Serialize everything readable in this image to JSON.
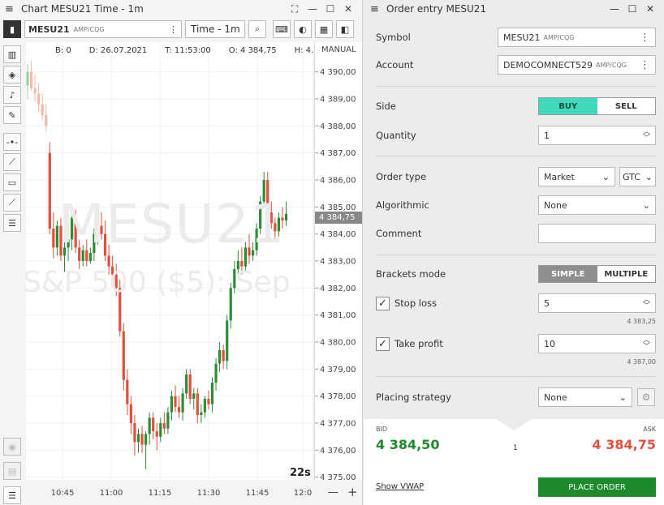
{
  "chart_window": {
    "title": "Chart MESU21 Time - 1m",
    "symbol": "MESU21",
    "symbol_source": "AMP/CQG",
    "timeframe": "Time - 1m",
    "info": {
      "b": "B: 0",
      "d": "D: 26.07.2021",
      "t": "T: 11:53:00",
      "o": "O: 4 384,75",
      "h": "H: 4..."
    },
    "scale_mode": "MANUAL",
    "watermark_symbol": "MESU21",
    "watermark_desc": "S&P 500 ($5): Sep",
    "current_price": "4 384,75",
    "bar_timer": "22s",
    "zoom_out": "—",
    "zoom_in": "+"
  },
  "chart_data": {
    "type": "candlestick",
    "y_ticks": [
      "4 390,00",
      "4 389,00",
      "4 388,00",
      "4 387,00",
      "4 386,00",
      "4 385,00",
      "4 384,00",
      "4 383,00",
      "4 382,00",
      "4 381,00",
      "4 380,00",
      "4 379,00",
      "4 378,00",
      "4 377,00",
      "4 376,00",
      "4 375,00"
    ],
    "y_tick_values": [
      4390,
      4389,
      4388,
      4387,
      4386,
      4385,
      4384,
      4383,
      4382,
      4381,
      4380,
      4379,
      4378,
      4377,
      4376,
      4375
    ],
    "x_ticks": [
      "10:45",
      "11:00",
      "11:15",
      "11:30",
      "11:45",
      "12:0"
    ],
    "ylim": [
      4374.9,
      4391.1
    ],
    "candles": [
      [
        4389.5,
        4390.3,
        4389.0,
        4390.0
      ],
      [
        4390.0,
        4390.4,
        4389.3,
        4389.4
      ],
      [
        4389.4,
        4389.9,
        4388.9,
        4389.2
      ],
      [
        4389.2,
        4389.6,
        4388.5,
        4388.8
      ],
      [
        4388.8,
        4389.2,
        4388.2,
        4388.4
      ],
      [
        4388.4,
        4388.8,
        4387.8,
        4388.0
      ],
      [
        4387.0,
        4387.4,
        4384.0,
        4384.2
      ],
      [
        4384.2,
        4384.8,
        4383.1,
        4383.5
      ],
      [
        4383.5,
        4384.5,
        4383.2,
        4384.3
      ],
      [
        4384.3,
        4384.6,
        4383.0,
        4383.2
      ],
      [
        4383.2,
        4383.8,
        4382.6,
        4383.5
      ],
      [
        4383.5,
        4384.2,
        4383.0,
        4383.8
      ],
      [
        4383.8,
        4384.9,
        4383.4,
        4384.6
      ],
      [
        4384.6,
        4384.9,
        4383.3,
        4383.5
      ],
      [
        4383.5,
        4383.8,
        4382.7,
        4383.0
      ],
      [
        4383.0,
        4383.6,
        4382.8,
        4383.4
      ],
      [
        4383.4,
        4383.8,
        4382.8,
        4383.0
      ],
      [
        4383.0,
        4383.5,
        4382.9,
        4383.3
      ],
      [
        4383.3,
        4384.2,
        4383.0,
        4384.0
      ],
      [
        4384.0,
        4384.7,
        4383.6,
        4384.3
      ],
      [
        4384.3,
        4384.8,
        4383.8,
        4384.0
      ],
      [
        4384.0,
        4384.5,
        4383.0,
        4383.2
      ],
      [
        4383.2,
        4383.6,
        4382.5,
        4382.8
      ],
      [
        4382.8,
        4383.2,
        4382.3,
        4382.5
      ],
      [
        4382.5,
        4382.9,
        4381.7,
        4382.0
      ],
      [
        4382.0,
        4382.3,
        4380.2,
        4380.4
      ],
      [
        4380.4,
        4380.7,
        4378.2,
        4378.6
      ],
      [
        4378.6,
        4379.0,
        4377.3,
        4377.7
      ],
      [
        4377.7,
        4378.0,
        4376.6,
        4377.0
      ],
      [
        4377.0,
        4377.3,
        4375.8,
        4376.3
      ],
      [
        4376.3,
        4376.8,
        4375.9,
        4376.6
      ],
      [
        4376.6,
        4376.9,
        4375.9,
        4376.2
      ],
      [
        4376.2,
        4376.7,
        4375.3,
        4376.6
      ],
      [
        4376.6,
        4377.4,
        4376.2,
        4377.2
      ],
      [
        4377.2,
        4377.4,
        4376.4,
        4376.7
      ],
      [
        4376.7,
        4377.0,
        4376.0,
        4376.5
      ],
      [
        4376.5,
        4377.2,
        4376.3,
        4377.0
      ],
      [
        4377.0,
        4377.4,
        4376.6,
        4376.8
      ],
      [
        4376.8,
        4377.6,
        4376.6,
        4377.4
      ],
      [
        4377.4,
        4378.2,
        4377.1,
        4378.0
      ],
      [
        4378.0,
        4378.4,
        4377.4,
        4377.6
      ],
      [
        4377.6,
        4378.0,
        4377.2,
        4377.4
      ],
      [
        4377.4,
        4378.3,
        4377.1,
        4378.1
      ],
      [
        4378.1,
        4379.0,
        4377.9,
        4378.8
      ],
      [
        4378.8,
        4379.0,
        4377.7,
        4377.9
      ],
      [
        4377.9,
        4378.3,
        4377.5,
        4378.1
      ],
      [
        4378.1,
        4378.3,
        4377.0,
        4377.3
      ],
      [
        4377.3,
        4377.7,
        4377.0,
        4377.4
      ],
      [
        4377.4,
        4378.0,
        4377.2,
        4377.9
      ],
      [
        4377.9,
        4378.2,
        4377.5,
        4377.7
      ],
      [
        4377.7,
        4378.7,
        4377.4,
        4378.5
      ],
      [
        4378.5,
        4379.4,
        4378.2,
        4379.2
      ],
      [
        4379.2,
        4380.0,
        4378.9,
        4379.7
      ],
      [
        4379.7,
        4379.9,
        4379.0,
        4379.3
      ],
      [
        4379.3,
        4381.0,
        4379.0,
        4380.8
      ],
      [
        4380.8,
        4382.2,
        4380.5,
        4382.0
      ],
      [
        4382.0,
        4383.0,
        4381.8,
        4382.7
      ],
      [
        4382.7,
        4383.4,
        4382.4,
        4383.0
      ],
      [
        4383.0,
        4383.5,
        4382.5,
        4382.8
      ],
      [
        4382.8,
        4383.7,
        4382.6,
        4383.5
      ],
      [
        4383.5,
        4384.0,
        4382.9,
        4383.2
      ],
      [
        4383.2,
        4383.7,
        4383.0,
        4383.4
      ],
      [
        4383.4,
        4384.4,
        4383.2,
        4384.2
      ],
      [
        4384.2,
        4385.4,
        4384.0,
        4385.2
      ],
      [
        4385.2,
        4386.3,
        4385.0,
        4386.0
      ],
      [
        4386.0,
        4386.3,
        4384.6,
        4384.8
      ],
      [
        4384.8,
        4385.2,
        4384.2,
        4384.4
      ],
      [
        4384.4,
        4384.6,
        4383.8,
        4384.1
      ],
      [
        4384.1,
        4384.8,
        4383.9,
        4384.6
      ],
      [
        4384.6,
        4385.0,
        4384.2,
        4384.5
      ],
      [
        4384.5,
        4385.2,
        4384.3,
        4384.75
      ]
    ]
  },
  "order_entry": {
    "title": "Order entry MESU21",
    "symbol_label": "Symbol",
    "symbol_value": "MESU21",
    "symbol_source": "AMP/CQG",
    "account_label": "Account",
    "account_value": "DEMOCOMNECT529",
    "account_source": "AMP/CQG",
    "side_label": "Side",
    "side_buy": "BUY",
    "side_sell": "SELL",
    "quantity_label": "Quantity",
    "quantity_value": "1",
    "order_type_label": "Order type",
    "order_type_value": "Market",
    "tif_value": "GTC",
    "algorithmic_label": "Algorithmic",
    "algorithmic_value": "None",
    "comment_label": "Comment",
    "comment_value": "",
    "brackets_label": "Brackets mode",
    "brackets_simple": "SIMPLE",
    "brackets_multiple": "MULTIPLE",
    "stop_loss_label": "Stop loss",
    "stop_loss_value": "5",
    "stop_loss_price": "4 383,25",
    "take_profit_label": "Take profit",
    "take_profit_value": "10",
    "take_profit_price": "4 387,00",
    "placing_label": "Placing strategy",
    "placing_value": "None",
    "bid_label": "BID",
    "bid_value": "4 384,50",
    "ask_label": "ASK",
    "ask_value": "4 384,75",
    "spread_qty": "1",
    "vwap_link": "Show VWAP",
    "place_order": "PLACE ORDER",
    "colors": {
      "buy": "#3fd9bd",
      "bid": "#1d8a2b",
      "ask": "#e0503a",
      "place": "#1d8a2b"
    }
  }
}
